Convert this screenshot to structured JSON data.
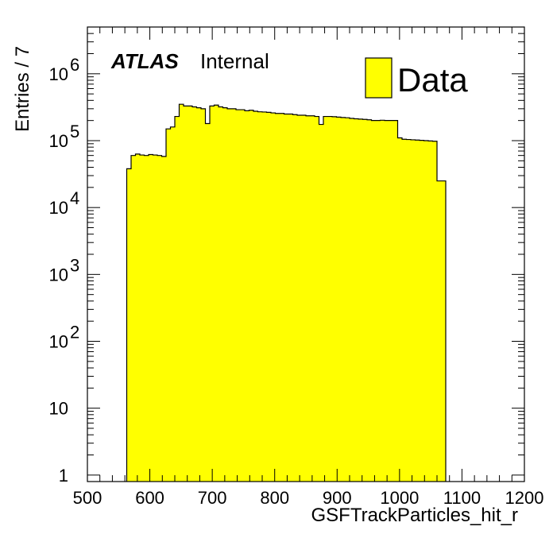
{
  "chart_data": {
    "type": "bar",
    "style": "histogram",
    "ylog": true,
    "xlabel": "GSFTrackParticles_hit_r",
    "ylabel": "Entries / 7",
    "xlim": [
      500,
      1200
    ],
    "ylim": [
      0.8,
      5000000
    ],
    "bin_width": 7,
    "x_ticks": [
      "500",
      "600",
      "700",
      "800",
      "900",
      "1000",
      "1100",
      "1200"
    ],
    "y_ticks": [
      {
        "base": "1",
        "exp": ""
      },
      {
        "base": "10",
        "exp": ""
      },
      {
        "base": "10",
        "exp": "2"
      },
      {
        "base": "10",
        "exp": "3"
      },
      {
        "base": "10",
        "exp": "4"
      },
      {
        "base": "10",
        "exp": "5"
      },
      {
        "base": "10",
        "exp": "6"
      }
    ],
    "y_tick_values": [
      1,
      10,
      100,
      1000,
      10000,
      100000,
      1000000
    ],
    "x_tick_values": [
      500,
      600,
      700,
      800,
      900,
      1000,
      1100,
      1200
    ],
    "series": [
      {
        "name": "Data",
        "color": "#ffff00",
        "edges": [
          563,
          570,
          577,
          584,
          591,
          598,
          605,
          612,
          619,
          626,
          633,
          640,
          647,
          654,
          661,
          668,
          675,
          682,
          689,
          696,
          703,
          710,
          717,
          724,
          731,
          738,
          745,
          752,
          759,
          766,
          773,
          780,
          787,
          794,
          801,
          808,
          815,
          822,
          829,
          836,
          843,
          850,
          857,
          864,
          871,
          878,
          885,
          892,
          899,
          906,
          913,
          920,
          927,
          934,
          941,
          948,
          955,
          962,
          969,
          976,
          983,
          990,
          997,
          1004,
          1011,
          1018,
          1025,
          1032,
          1039,
          1046,
          1053,
          1060,
          1067,
          1074
        ],
        "values": [
          38000,
          60000,
          63000,
          61000,
          60000,
          62000,
          61000,
          60000,
          58000,
          150000,
          160000,
          230000,
          350000,
          330000,
          330000,
          320000,
          310000,
          300000,
          180000,
          330000,
          340000,
          320000,
          310000,
          300000,
          300000,
          290000,
          290000,
          280000,
          285000,
          275000,
          270000,
          268000,
          265000,
          260000,
          255000,
          255000,
          250000,
          250000,
          245000,
          240000,
          240000,
          235000,
          235000,
          230000,
          175000,
          230000,
          230000,
          228000,
          225000,
          222000,
          220000,
          215000,
          212000,
          210000,
          208000,
          205000,
          200000,
          200000,
          202000,
          200000,
          200000,
          200000,
          110000,
          105000,
          104000,
          103000,
          102000,
          101000,
          100000,
          99000,
          98000,
          25000,
          25000
        ]
      }
    ],
    "legend": {
      "position": "top-right",
      "entries": [
        "Data"
      ]
    },
    "grid": false
  },
  "labels": {
    "experiment": "ATLAS",
    "status": "Internal",
    "legend_entry": "Data"
  },
  "colors": {
    "fill": "#ffff00",
    "line": "#000000",
    "background": "#ffffff"
  }
}
